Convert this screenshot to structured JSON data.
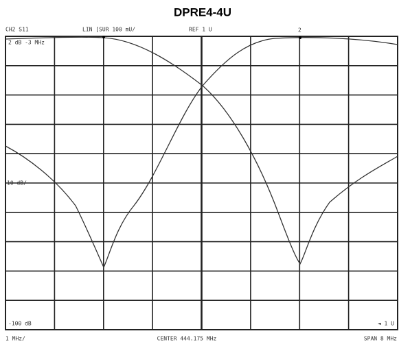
{
  "title": "DPRE4-4U",
  "header": {
    "channel": "CH2 S11",
    "format": "LIN [SUR 100 mU/",
    "reference": "REF 1 U",
    "marker": "2"
  },
  "labels": {
    "top_left": "2 dB -3 MHz",
    "scale": "10 dB/",
    "bottom_left": "-100 dB",
    "bottom_right": "◄ 1 U"
  },
  "footer": {
    "per_division": "1 MHz/",
    "center": "CENTER 444.175 MHz",
    "span": "SPAN 8 MHz"
  }
}
